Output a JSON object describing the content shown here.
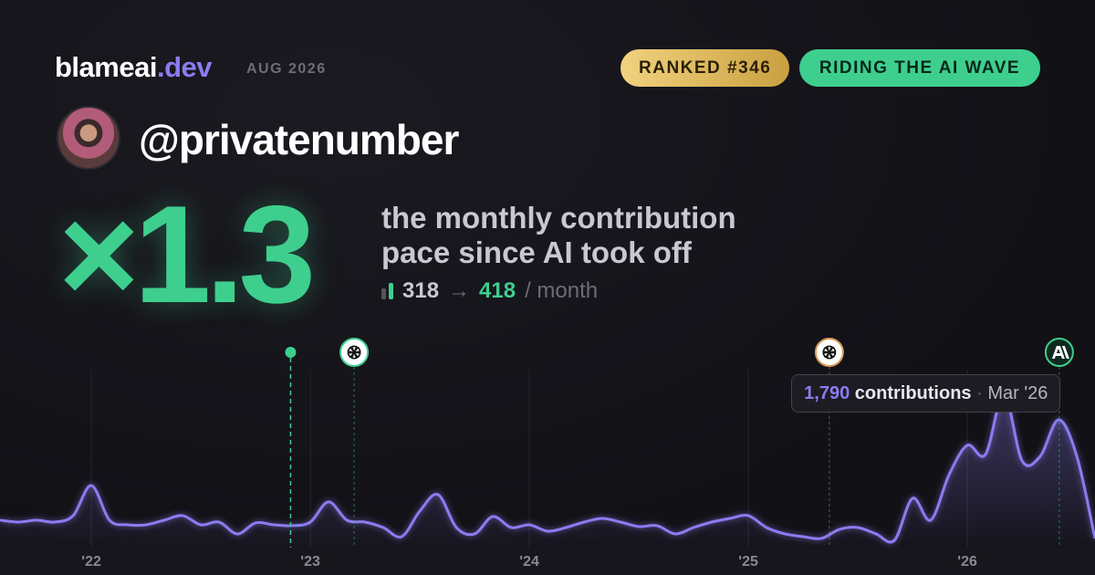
{
  "header": {
    "brand": "blameai",
    "brand_tld": ".dev",
    "period": "AUG 2026",
    "rank_badge": "RANKED #346",
    "status_badge": "RIDING THE AI WAVE"
  },
  "user": {
    "handle": "@privatenumber"
  },
  "headline": {
    "multiplier": "×1.3",
    "caption_line1": "the monthly contribution",
    "caption_line2": "pace since AI took off",
    "before": 318,
    "arrow": "→",
    "after": 418,
    "unit": "/ month"
  },
  "chart_data": {
    "type": "area",
    "x": [
      2021.583,
      2021.667,
      2021.75,
      2021.833,
      2021.917,
      2022,
      2022.083,
      2022.167,
      2022.25,
      2022.333,
      2022.417,
      2022.5,
      2022.583,
      2022.667,
      2022.75,
      2022.833,
      2022.917,
      2023,
      2023.083,
      2023.167,
      2023.25,
      2023.333,
      2023.417,
      2023.5,
      2023.583,
      2023.667,
      2023.75,
      2023.833,
      2023.917,
      2024,
      2024.083,
      2024.167,
      2024.25,
      2024.333,
      2024.417,
      2024.5,
      2024.583,
      2024.667,
      2024.75,
      2024.833,
      2024.917,
      2025,
      2025.083,
      2025.167,
      2025.25,
      2025.333,
      2025.417,
      2025.5,
      2025.583,
      2025.667,
      2025.75,
      2025.833,
      2025.917,
      2026,
      2026.083,
      2026.167,
      2026.25,
      2026.333,
      2026.417,
      2026.5,
      2026.583
    ],
    "values": [
      320,
      298,
      320,
      298,
      373,
      724,
      320,
      266,
      266,
      320,
      373,
      266,
      298,
      160,
      288,
      266,
      256,
      298,
      533,
      320,
      298,
      234,
      128,
      426,
      618,
      234,
      160,
      362,
      234,
      266,
      192,
      234,
      298,
      341,
      298,
      245,
      256,
      160,
      234,
      298,
      341,
      373,
      234,
      160,
      128,
      107,
      213,
      234,
      160,
      85,
      575,
      320,
      852,
      1193,
      1086,
      1790,
      1012,
      1065,
      1491,
      1065,
      107
    ],
    "color": "#8b7cf0",
    "xlim": [
      2021.583,
      2026.583
    ],
    "ylim": [
      0,
      2000
    ],
    "xticks": [
      {
        "value": 2022,
        "label": "'22"
      },
      {
        "value": 2023,
        "label": "'23"
      },
      {
        "value": 2024,
        "label": "'24"
      },
      {
        "value": 2025,
        "label": "'25"
      },
      {
        "value": 2026,
        "label": "'26"
      }
    ],
    "grid": true,
    "markers": [
      {
        "x": 2022.91,
        "kind": "dot",
        "color": "#3ecf8e"
      },
      {
        "x": 2023.2,
        "kind": "openai",
        "color": "#3ecf8e"
      },
      {
        "x": 2025.37,
        "kind": "openai",
        "color": "#d99a55"
      },
      {
        "x": 2026.42,
        "kind": "anthropic",
        "color": "#3ecf8e"
      }
    ],
    "tooltip": {
      "index": 55,
      "value_label": "1,790",
      "label": "contributions",
      "date": "Mar '26"
    }
  }
}
